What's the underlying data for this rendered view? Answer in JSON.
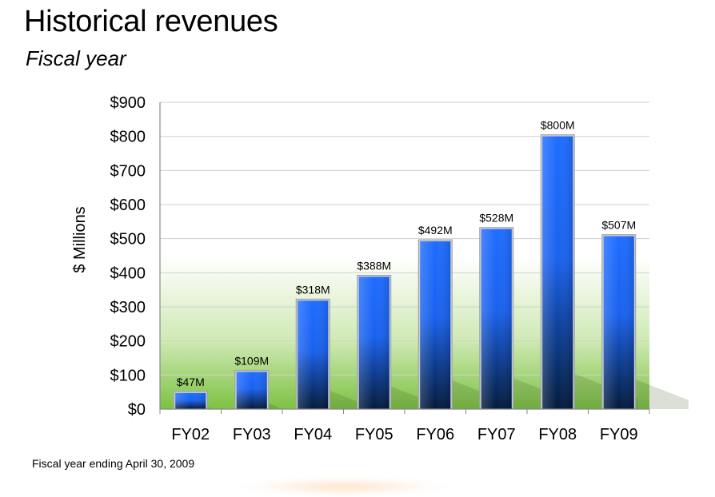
{
  "header": {
    "title": "Historical revenues",
    "subtitle": "Fiscal year"
  },
  "footnote": "Fiscal year ending April 30, 2009",
  "chart_data": {
    "type": "bar",
    "title": "",
    "xlabel": "",
    "ylabel": "$ Millions",
    "categories": [
      "FY02",
      "FY03",
      "FY04",
      "FY05",
      "FY06",
      "FY07",
      "FY08",
      "FY09"
    ],
    "values": [
      47,
      109,
      318,
      388,
      492,
      528,
      800,
      507
    ],
    "data_labels": [
      "$47M",
      "$109M",
      "$318M",
      "$388M",
      "$492M",
      "$528M",
      "$800M",
      "$507M"
    ],
    "ylim": [
      0,
      900
    ],
    "yticks": [
      0,
      100,
      200,
      300,
      400,
      500,
      600,
      700,
      800,
      900
    ],
    "ytick_labels": [
      "$0",
      "$100",
      "$200",
      "$300",
      "$400",
      "$500",
      "$600",
      "$700",
      "$800",
      "$900"
    ],
    "grid": true,
    "legend": "none",
    "colors": {
      "bar_top": "#1e6cff",
      "bar_bottom": "#041a3a",
      "plot_band": "#7cc242"
    }
  }
}
